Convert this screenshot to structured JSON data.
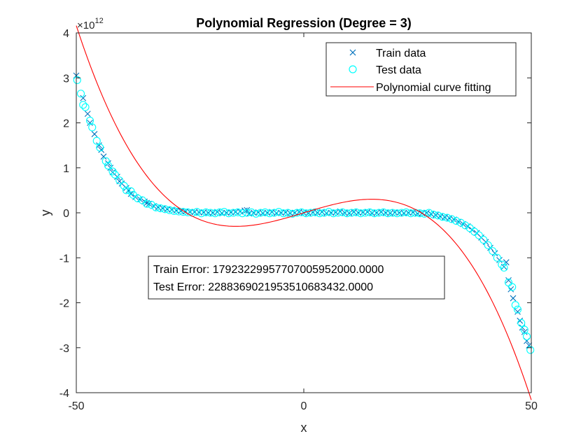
{
  "chart_data": {
    "type": "scatter",
    "title": "Polynomial Regression (Degree = 3)",
    "xlabel": "x",
    "ylabel": "y",
    "y_exponent_label": "×10",
    "y_exponent": "12",
    "xlim": [
      -50,
      50
    ],
    "ylim": [
      -4,
      4
    ],
    "y_scale_factor": 1000000000000.0,
    "xticks": [
      -50,
      0,
      50
    ],
    "yticks": [
      -4,
      -3,
      -2,
      -1,
      0,
      1,
      2,
      3,
      4
    ],
    "grid": false,
    "legend_position": "top-right",
    "legend": [
      {
        "label": "Train data",
        "marker": "x",
        "color": "#0072BD"
      },
      {
        "label": "Test data",
        "marker": "o",
        "color": "#00FFFF"
      },
      {
        "label": "Polynomial curve fitting",
        "marker": "line",
        "color": "#FF0000"
      }
    ],
    "annotation": {
      "train_error": "Train Error: 17923229957707005952000.0000",
      "test_error": "Test Error: 2288369021953510683432.0000"
    },
    "curve_coefficients_e12": {
      "c3": -4.54e-05,
      "c2": 0.0,
      "c1": 0.0303,
      "c0": 0.0
    },
    "series": [
      {
        "name": "Train data",
        "marker": "x",
        "color": "#0072BD",
        "points": [
          [
            -50,
            3.05
          ],
          [
            -48.5,
            2.55
          ],
          [
            -47.5,
            2.2
          ],
          [
            -47,
            2.0
          ],
          [
            -46,
            1.75
          ],
          [
            -45,
            1.5
          ],
          [
            -44.5,
            1.4
          ],
          [
            -44,
            1.25
          ],
          [
            -43,
            1.1
          ],
          [
            -42.5,
            1.0
          ],
          [
            -42,
            0.9
          ],
          [
            -41,
            0.8
          ],
          [
            -40.5,
            0.7
          ],
          [
            -40,
            0.65
          ],
          [
            -39,
            0.55
          ],
          [
            -38.5,
            0.5
          ],
          [
            -38,
            0.42
          ],
          [
            -37,
            0.35
          ],
          [
            -36,
            0.3
          ],
          [
            -35,
            0.25
          ],
          [
            -34.5,
            0.22
          ],
          [
            -34,
            0.2
          ],
          [
            -33,
            0.15
          ],
          [
            -32,
            0.12
          ],
          [
            -31,
            0.1
          ],
          [
            -30,
            0.08
          ],
          [
            -29,
            0.07
          ],
          [
            -28,
            0.05
          ],
          [
            -27,
            0.04
          ],
          [
            -26,
            0.03
          ],
          [
            -25,
            0.02
          ],
          [
            -24,
            0.02
          ],
          [
            -23,
            0.01
          ],
          [
            -22,
            0.01
          ],
          [
            -21,
            0.0
          ],
          [
            -20,
            0.0
          ],
          [
            -19,
            0.02
          ],
          [
            -18,
            -0.01
          ],
          [
            -17,
            0.0
          ],
          [
            -16,
            0.01
          ],
          [
            -15,
            0.02
          ],
          [
            -14,
            0.03
          ],
          [
            -13,
            0.05
          ],
          [
            -12.5,
            0.06
          ],
          [
            -12,
            -0.02
          ],
          [
            -11,
            0.0
          ],
          [
            -10,
            0.01
          ],
          [
            -9,
            -0.01
          ],
          [
            -8,
            0.0
          ],
          [
            -7,
            0.02
          ],
          [
            -6,
            -0.01
          ],
          [
            -5,
            0.0
          ],
          [
            -4,
            0.01
          ],
          [
            -3,
            -0.01
          ],
          [
            -2,
            0.0
          ],
          [
            -1,
            0.02
          ],
          [
            0,
            0.0
          ],
          [
            1,
            -0.01
          ],
          [
            2,
            0.01
          ],
          [
            3,
            0.0
          ],
          [
            4,
            0.02
          ],
          [
            5,
            -0.01
          ],
          [
            6,
            0.0
          ],
          [
            7,
            0.01
          ],
          [
            8,
            0.03
          ],
          [
            9,
            0.0
          ],
          [
            10,
            -0.01
          ],
          [
            11,
            0.02
          ],
          [
            12,
            0.0
          ],
          [
            13,
            0.01
          ],
          [
            14,
            0.02
          ],
          [
            15,
            -0.01
          ],
          [
            16,
            0.0
          ],
          [
            17,
            0.02
          ],
          [
            18,
            0.0
          ],
          [
            19,
            -0.01
          ],
          [
            20,
            0.01
          ],
          [
            21,
            0.0
          ],
          [
            22,
            -0.01
          ],
          [
            23,
            0.0
          ],
          [
            24,
            0.01
          ],
          [
            25,
            -0.02
          ],
          [
            26,
            -0.01
          ],
          [
            27,
            0.0
          ],
          [
            28,
            -0.03
          ],
          [
            29,
            -0.05
          ],
          [
            30,
            -0.08
          ],
          [
            31,
            -0.1
          ],
          [
            32,
            -0.12
          ],
          [
            33,
            -0.15
          ],
          [
            34,
            -0.2
          ],
          [
            35,
            -0.25
          ],
          [
            36,
            -0.3
          ],
          [
            37,
            -0.38
          ],
          [
            38,
            -0.45
          ],
          [
            39,
            -0.55
          ],
          [
            40,
            -0.65
          ],
          [
            41,
            -0.78
          ],
          [
            42,
            -0.9
          ],
          [
            43,
            -1.05
          ],
          [
            44,
            -1.2
          ],
          [
            44.5,
            -1.1
          ],
          [
            45,
            -1.5
          ],
          [
            45.5,
            -1.7
          ],
          [
            46,
            -1.9
          ],
          [
            47,
            -2.2
          ],
          [
            47.5,
            -2.4
          ],
          [
            48,
            -2.55
          ],
          [
            48.5,
            -2.65
          ],
          [
            49,
            -2.85
          ],
          [
            49.5,
            -2.95
          ]
        ]
      },
      {
        "name": "Test data",
        "marker": "o",
        "color": "#00FFFF",
        "points": [
          [
            -49.8,
            2.95
          ],
          [
            -49,
            2.65
          ],
          [
            -48.5,
            2.4
          ],
          [
            -48,
            2.35
          ],
          [
            -47,
            2.05
          ],
          [
            -46.5,
            1.9
          ],
          [
            -45.5,
            1.6
          ],
          [
            -44.8,
            1.45
          ],
          [
            -43.5,
            1.15
          ],
          [
            -43,
            1.05
          ],
          [
            -42,
            0.92
          ],
          [
            -41.5,
            0.85
          ],
          [
            -40.5,
            0.72
          ],
          [
            -39.5,
            0.6
          ],
          [
            -39,
            0.5
          ],
          [
            -38,
            0.48
          ],
          [
            -37.5,
            0.4
          ],
          [
            -36.5,
            0.32
          ],
          [
            -35.5,
            0.28
          ],
          [
            -34.5,
            0.2
          ],
          [
            -33.5,
            0.18
          ],
          [
            -32.5,
            0.12
          ],
          [
            -31.5,
            0.1
          ],
          [
            -30.5,
            0.08
          ],
          [
            -29.5,
            0.06
          ],
          [
            -28.5,
            0.04
          ],
          [
            -27.5,
            0.03
          ],
          [
            -26.5,
            0.02
          ],
          [
            -25.5,
            0.01
          ],
          [
            -24.5,
            0.0
          ],
          [
            -23.5,
            0.02
          ],
          [
            -22.5,
            -0.01
          ],
          [
            -21.5,
            0.01
          ],
          [
            -20.5,
            0.0
          ],
          [
            -19.5,
            -0.01
          ],
          [
            -18.5,
            0.01
          ],
          [
            -17.5,
            0.02
          ],
          [
            -16.5,
            -0.01
          ],
          [
            -15.5,
            0.0
          ],
          [
            -14.5,
            0.01
          ],
          [
            -13.5,
            -0.01
          ],
          [
            -12.5,
            0.0
          ],
          [
            -11.5,
            0.01
          ],
          [
            -10.5,
            -0.02
          ],
          [
            -9.5,
            0.0
          ],
          [
            -8.5,
            0.01
          ],
          [
            -7.5,
            -0.01
          ],
          [
            -6.5,
            0.0
          ],
          [
            -5.5,
            0.02
          ],
          [
            -4.5,
            -0.01
          ],
          [
            -3.5,
            0.0
          ],
          [
            -2.5,
            -0.02
          ],
          [
            -1.5,
            0.0
          ],
          [
            -0.5,
            0.01
          ],
          [
            0.5,
            -0.01
          ],
          [
            1.5,
            0.0
          ],
          [
            2.5,
            0.01
          ],
          [
            3.5,
            -0.01
          ],
          [
            4.5,
            0.0
          ],
          [
            5.5,
            0.02
          ],
          [
            6.5,
            -0.01
          ],
          [
            7.5,
            0.0
          ],
          [
            8.5,
            0.01
          ],
          [
            9.5,
            -0.01
          ],
          [
            10.5,
            0.0
          ],
          [
            11.5,
            0.01
          ],
          [
            12.5,
            -0.01
          ],
          [
            13.5,
            0.0
          ],
          [
            14.5,
            0.01
          ],
          [
            15.5,
            -0.01
          ],
          [
            16.5,
            0.0
          ],
          [
            17.5,
            0.01
          ],
          [
            18.5,
            -0.01
          ],
          [
            19.5,
            0.0
          ],
          [
            20.5,
            -0.01
          ],
          [
            21.5,
            0.0
          ],
          [
            22.5,
            0.01
          ],
          [
            23.5,
            -0.01
          ],
          [
            24.5,
            0.0
          ],
          [
            25.5,
            -0.01
          ],
          [
            26.5,
            -0.02
          ],
          [
            27.5,
            0.0
          ],
          [
            28.5,
            -0.04
          ],
          [
            29.5,
            -0.06
          ],
          [
            30.5,
            -0.09
          ],
          [
            31.5,
            -0.11
          ],
          [
            32.5,
            -0.14
          ],
          [
            33.5,
            -0.18
          ],
          [
            34.5,
            -0.22
          ],
          [
            35.5,
            -0.28
          ],
          [
            36.5,
            -0.34
          ],
          [
            37.5,
            -0.42
          ],
          [
            38.5,
            -0.5
          ],
          [
            39.5,
            -0.6
          ],
          [
            40.5,
            -0.72
          ],
          [
            41.5,
            -0.85
          ],
          [
            42.5,
            -1.0
          ],
          [
            43.5,
            -1.15
          ],
          [
            44,
            -1.22
          ],
          [
            45,
            -1.55
          ],
          [
            45.8,
            -1.65
          ],
          [
            46.5,
            -2.05
          ],
          [
            47,
            -2.15
          ],
          [
            47.8,
            -2.45
          ],
          [
            48.5,
            -2.6
          ],
          [
            49,
            -2.75
          ],
          [
            49.8,
            -3.05
          ]
        ]
      }
    ]
  }
}
